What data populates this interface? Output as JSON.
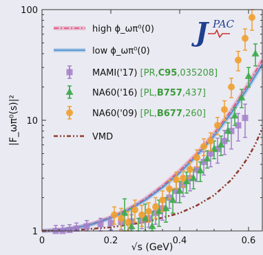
{
  "chart_data": {
    "type": "scatter",
    "title": "",
    "xlabel": "√s (GeV)",
    "ylabel": "|F_ωπ⁰(s)|²",
    "xlim": [
      0,
      0.64
    ],
    "ylim": [
      1,
      100
    ],
    "yscale": "log",
    "grid": false,
    "legend_position": "top-left",
    "x_ticks": [
      "0",
      "0.2",
      "0.4",
      "0.6"
    ],
    "x_tick_values": [
      0,
      0.2,
      0.4,
      0.6
    ],
    "y_ticks": [
      "1",
      "10",
      "100"
    ],
    "y_tick_values": [
      1,
      10,
      100
    ],
    "logo_text": "JPAC",
    "series": [
      {
        "name": "high ϕ_ωπ⁰(0)",
        "kind": "band",
        "color": "#e0507a",
        "style": "dashdot",
        "x": [
          0,
          0.05,
          0.1,
          0.15,
          0.2,
          0.25,
          0.3,
          0.35,
          0.4,
          0.45,
          0.5,
          0.55,
          0.6,
          0.64
        ],
        "y": [
          1.0,
          1.02,
          1.07,
          1.17,
          1.33,
          1.57,
          1.95,
          2.55,
          3.5,
          5.0,
          7.6,
          12.3,
          21.5,
          35.0
        ]
      },
      {
        "name": "low ϕ_ωπ⁰(0)",
        "kind": "band",
        "color": "#4a8fcf",
        "style": "solid",
        "x": [
          0,
          0.05,
          0.1,
          0.15,
          0.2,
          0.25,
          0.3,
          0.35,
          0.4,
          0.45,
          0.5,
          0.55,
          0.6,
          0.64
        ],
        "y": [
          1.0,
          1.02,
          1.07,
          1.16,
          1.31,
          1.54,
          1.9,
          2.47,
          3.35,
          4.8,
          7.2,
          11.6,
          20.0,
          32.0
        ]
      },
      {
        "name": "MAMI('17)",
        "ref_prefix": "[PR,",
        "ref_bold": "C95",
        "ref_suffix": ",035208]",
        "kind": "points",
        "marker": "square",
        "color": "#a27fc8",
        "x": [
          0.04,
          0.06,
          0.08,
          0.1,
          0.13,
          0.17,
          0.2,
          0.23,
          0.26,
          0.29,
          0.31,
          0.33,
          0.35,
          0.37,
          0.39,
          0.41,
          0.43,
          0.45,
          0.47,
          0.49,
          0.51,
          0.53,
          0.55,
          0.57,
          0.59
        ],
        "y": [
          1.0,
          1.0,
          1.02,
          1.05,
          1.1,
          1.15,
          1.18,
          1.2,
          1.22,
          1.25,
          1.3,
          1.45,
          1.6,
          2.0,
          2.3,
          2.6,
          3.0,
          3.6,
          4.2,
          5.0,
          5.5,
          6.5,
          8.0,
          9.0,
          10.5
        ],
        "err": [
          0.12,
          0.12,
          0.12,
          0.13,
          0.14,
          0.15,
          0.16,
          0.17,
          0.18,
          0.2,
          0.22,
          0.3,
          0.35,
          0.4,
          0.5,
          0.55,
          0.7,
          0.8,
          1.0,
          1.2,
          1.4,
          1.6,
          2.5,
          2.5,
          3.5
        ]
      },
      {
        "name": "NA60('16)",
        "ref_prefix": "[PL,",
        "ref_bold": "B757",
        "ref_suffix": ",437]",
        "kind": "points",
        "marker": "triangle",
        "color": "#3daa4a",
        "x": [
          0.24,
          0.26,
          0.28,
          0.3,
          0.32,
          0.34,
          0.36,
          0.38,
          0.4,
          0.42,
          0.44,
          0.46,
          0.48,
          0.5,
          0.52,
          0.54,
          0.56,
          0.58,
          0.6,
          0.62
        ],
        "y": [
          1.45,
          1.1,
          0.9,
          1.3,
          1.1,
          1.5,
          1.6,
          1.9,
          2.3,
          2.8,
          3.0,
          3.5,
          4.5,
          5.5,
          6.0,
          8.0,
          11.0,
          16.0,
          25.0,
          40.0
        ],
        "err": [
          0.5,
          0.5,
          0.4,
          0.45,
          0.4,
          0.4,
          0.4,
          0.45,
          0.5,
          0.6,
          0.6,
          0.7,
          0.8,
          1.0,
          1.2,
          1.5,
          2.0,
          3.0,
          5.0,
          9.0
        ]
      },
      {
        "name": "NA60('09)",
        "ref_prefix": "[PL,",
        "ref_bold": "B677",
        "ref_suffix": ",260]",
        "kind": "points",
        "marker": "circle",
        "color": "#f0a030",
        "x": [
          0.21,
          0.23,
          0.25,
          0.27,
          0.29,
          0.31,
          0.33,
          0.35,
          0.37,
          0.39,
          0.41,
          0.43,
          0.45,
          0.47,
          0.49,
          0.51,
          0.53,
          0.55,
          0.57,
          0.59,
          0.61
        ],
        "y": [
          1.4,
          1.3,
          1.2,
          1.55,
          1.4,
          1.5,
          1.65,
          1.9,
          2.4,
          2.9,
          3.0,
          3.6,
          4.6,
          5.8,
          6.5,
          9.0,
          12.5,
          20.0,
          35.0,
          55.0,
          85.0
        ],
        "err": [
          0.25,
          0.3,
          0.3,
          0.35,
          0.3,
          0.3,
          0.35,
          0.4,
          0.45,
          0.5,
          0.5,
          0.6,
          0.8,
          1.0,
          1.2,
          1.6,
          2.5,
          4.0,
          7.0,
          12.0,
          20.0
        ]
      },
      {
        "name": "VMD",
        "kind": "line",
        "color": "#8b3a2c",
        "style": "dashdotdot",
        "x": [
          0,
          0.1,
          0.2,
          0.3,
          0.4,
          0.45,
          0.5,
          0.55,
          0.58,
          0.6,
          0.62,
          0.64
        ],
        "y": [
          1.0,
          1.02,
          1.08,
          1.2,
          1.45,
          1.7,
          2.1,
          2.9,
          3.8,
          4.7,
          6.1,
          8.5
        ]
      }
    ]
  }
}
